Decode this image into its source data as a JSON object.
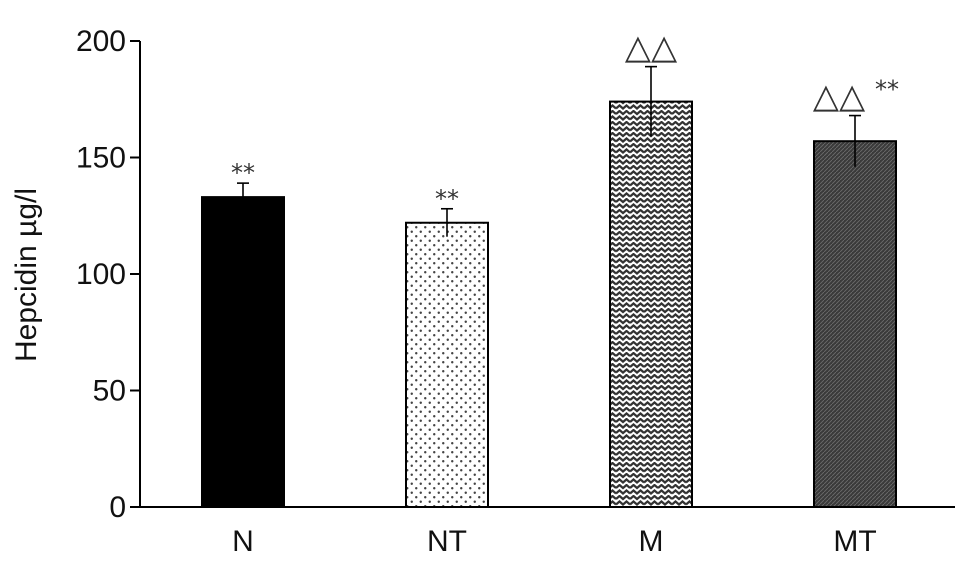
{
  "chart_data": {
    "type": "bar",
    "title": "",
    "xlabel": "",
    "ylabel": "Hepcidin µg/l",
    "ylim": [
      0,
      200
    ],
    "yticks": [
      0,
      50,
      100,
      150,
      200
    ],
    "categories": [
      "N",
      "NT",
      "M",
      "MT"
    ],
    "values": [
      133,
      122,
      174,
      157
    ],
    "errors": [
      6,
      6,
      15,
      11
    ],
    "annotations": [
      {
        "category": "N",
        "tri": "",
        "stars": "**"
      },
      {
        "category": "NT",
        "tri": "",
        "stars": "**"
      },
      {
        "category": "M",
        "tri": "△△",
        "stars": ""
      },
      {
        "category": "MT",
        "tri": "△△",
        "stars": "**"
      }
    ],
    "fills": [
      "solid-black",
      "dots",
      "zigzag",
      "dark-hatch"
    ],
    "colors": {
      "bar_dark": "#000000",
      "bar_hatch": "#3a3a3a",
      "axis": "#000000"
    },
    "grid": false,
    "legend": "none"
  }
}
